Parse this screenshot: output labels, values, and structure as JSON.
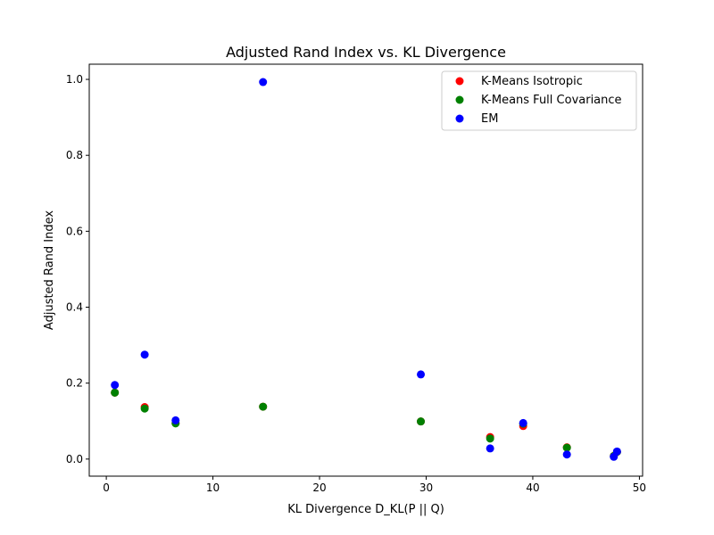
{
  "chart_data": {
    "type": "scatter",
    "title": "Adjusted Rand Index vs. KL Divergence",
    "xlabel": "KL Divergence D_KL(P || Q)",
    "ylabel": "Adjusted Rand Index",
    "xlim": [
      -1.6,
      50.3
    ],
    "ylim": [
      -0.045,
      1.04
    ],
    "xticks": [
      0,
      10,
      20,
      30,
      40,
      50
    ],
    "xtick_labels": [
      "0",
      "10",
      "20",
      "30",
      "40",
      "50"
    ],
    "yticks": [
      0.0,
      0.2,
      0.4,
      0.6,
      0.8,
      1.0
    ],
    "ytick_labels": [
      "0.0",
      "0.2",
      "0.4",
      "0.6",
      "0.8",
      "1.0"
    ],
    "grid": false,
    "legend": {
      "position": "top-right"
    },
    "series": [
      {
        "name": "K-Means Isotropic",
        "color": "#ff0000",
        "points": [
          [
            0.8,
            0.175
          ],
          [
            3.6,
            0.137
          ],
          [
            6.5,
            0.095
          ],
          [
            14.7,
            0.138
          ],
          [
            29.5,
            0.099
          ],
          [
            36.0,
            0.058
          ],
          [
            39.1,
            0.087
          ],
          [
            43.2,
            0.031
          ],
          [
            47.6,
            0.008
          ],
          [
            47.9,
            0.019
          ]
        ]
      },
      {
        "name": "K-Means Full Covariance",
        "color": "#008000",
        "points": [
          [
            0.8,
            0.175
          ],
          [
            3.6,
            0.133
          ],
          [
            6.5,
            0.094
          ],
          [
            14.7,
            0.138
          ],
          [
            29.5,
            0.099
          ],
          [
            36.0,
            0.054
          ],
          [
            39.1,
            0.093
          ],
          [
            43.2,
            0.03
          ],
          [
            47.6,
            0.008
          ],
          [
            47.9,
            0.019
          ]
        ]
      },
      {
        "name": "EM",
        "color": "#0000ff",
        "points": [
          [
            0.8,
            0.195
          ],
          [
            3.6,
            0.275
          ],
          [
            6.5,
            0.102
          ],
          [
            14.7,
            0.993
          ],
          [
            29.5,
            0.223
          ],
          [
            36.0,
            0.028
          ],
          [
            39.1,
            0.095
          ],
          [
            43.2,
            0.012
          ],
          [
            47.6,
            0.006
          ],
          [
            47.9,
            0.02
          ]
        ]
      }
    ]
  }
}
